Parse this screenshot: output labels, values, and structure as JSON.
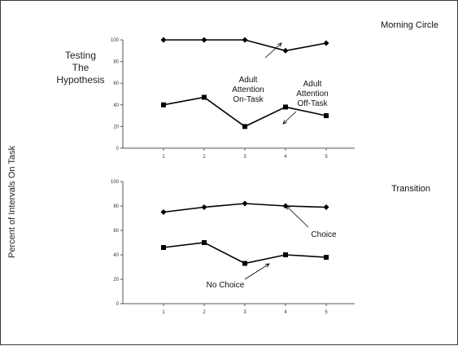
{
  "slide": {
    "side_title": [
      "Testing",
      "The",
      "Hypothesis"
    ],
    "shared_ylabel": "Percent of Intervals On Task"
  },
  "chart_data": [
    {
      "type": "line",
      "title": "Morning Circle",
      "categories": [
        "1",
        "2",
        "3",
        "4",
        "5"
      ],
      "ylim": [
        0,
        100
      ],
      "yticks": [
        0,
        20,
        40,
        60,
        80,
        100
      ],
      "series": [
        {
          "name": "Adult Attention On-Task",
          "marker": "diamond",
          "values": [
            100,
            100,
            100,
            90,
            97
          ]
        },
        {
          "name": "Adult Attention Off-Task",
          "marker": "square",
          "values": [
            40,
            47,
            20,
            38,
            30
          ]
        }
      ],
      "annotations": [
        {
          "lines": [
            "Adult",
            "Attention",
            "On-Task"
          ],
          "series": 0,
          "point": 2
        },
        {
          "lines": [
            "Adult",
            "Attention",
            "Off-Task"
          ],
          "series": 1,
          "point": 2
        }
      ]
    },
    {
      "type": "line",
      "title": "Transition",
      "categories": [
        "1",
        "2",
        "3",
        "4",
        "5"
      ],
      "ylim": [
        0,
        100
      ],
      "yticks": [
        0,
        20,
        40,
        60,
        80,
        100
      ],
      "series": [
        {
          "name": "Choice",
          "marker": "diamond",
          "values": [
            75,
            79,
            82,
            80,
            79
          ]
        },
        {
          "name": "No Choice",
          "marker": "square",
          "values": [
            46,
            50,
            33,
            40,
            38
          ]
        }
      ],
      "annotations": [
        {
          "lines": [
            "Choice"
          ],
          "series": 0,
          "point": 2
        },
        {
          "lines": [
            "No Choice"
          ],
          "series": 1,
          "point": 2
        }
      ]
    }
  ]
}
